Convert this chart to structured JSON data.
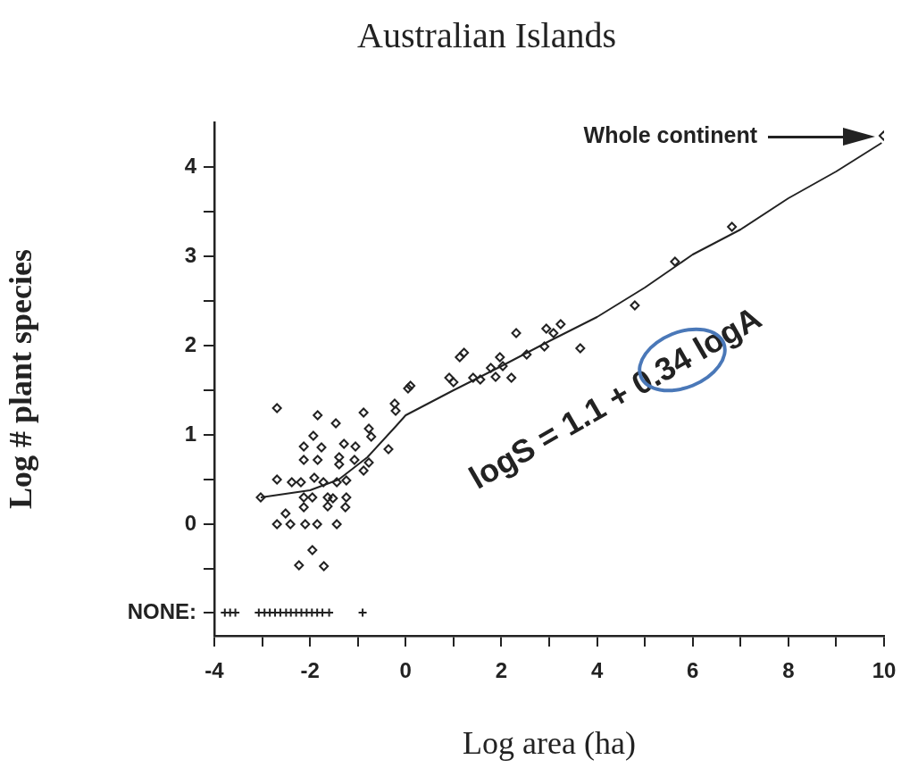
{
  "chart_data": {
    "type": "scatter",
    "title": "Australian Islands",
    "xlabel": "Log area (ha)",
    "ylabel": "Log # plant species",
    "xlim": [
      -4,
      10
    ],
    "ylim": [
      -1.25,
      4.5
    ],
    "xticks": [
      -4,
      {
        "value": -3,
        "label": null
      },
      -2,
      {
        "value": -1,
        "label": null
      },
      0,
      {
        "value": 1,
        "label": null
      },
      2,
      {
        "value": 3,
        "label": null
      },
      4,
      {
        "value": 5,
        "label": null
      },
      6,
      {
        "value": 7,
        "label": null
      },
      8,
      {
        "value": 9,
        "label": null
      },
      10
    ],
    "yticks": [
      {
        "value": -0.99,
        "label": "NONE:"
      },
      {
        "value": -0.5,
        "label": null
      },
      0,
      {
        "value": 0.5,
        "label": null
      },
      1,
      {
        "value": 1.5,
        "label": null
      },
      2,
      {
        "value": 2.5,
        "label": null
      },
      3,
      {
        "value": 3.5,
        "label": null
      },
      4
    ],
    "series": [
      {
        "type": "scatter",
        "marker": "diamond",
        "color": "#222222",
        "x": [
          -2.69,
          -1.84,
          -1.46,
          -0.88,
          -1.93,
          -1.76,
          -1.29,
          -2.13,
          -1.05,
          -0.72,
          -0.36,
          -2.13,
          -1.84,
          -1.39,
          -1.39,
          -1.07,
          -0.77,
          -0.88,
          -2.69,
          -2.38,
          -2.19,
          -1.91,
          -1.72,
          -1.44,
          -1.24,
          -3.03,
          -2.13,
          -1.95,
          -1.63,
          -1.52,
          -1.24,
          -2.13,
          -1.63,
          -1.26,
          -2.51,
          -2.69,
          -2.41,
          -2.1,
          -1.85,
          -1.44,
          -1.95,
          -2.23,
          -1.71,
          -0.77,
          -0.23,
          -0.21,
          0.05,
          0.1,
          1.13,
          1.22,
          0.91,
          1.0,
          1.41,
          1.56,
          1.78,
          1.97,
          2.03,
          1.88,
          2.21,
          2.31,
          2.53,
          2.9,
          2.94,
          3.09,
          3.24,
          3.65,
          4.79,
          5.63,
          6.82,
          9.99
        ],
        "values": [
          1.3,
          1.22,
          1.13,
          1.25,
          0.99,
          0.86,
          0.9,
          0.87,
          0.87,
          0.98,
          0.84,
          0.72,
          0.72,
          0.75,
          0.67,
          0.72,
          0.69,
          0.6,
          0.5,
          0.47,
          0.47,
          0.52,
          0.47,
          0.47,
          0.49,
          0.3,
          0.3,
          0.3,
          0.3,
          0.29,
          0.3,
          0.19,
          0.2,
          0.19,
          0.12,
          0.0,
          0.0,
          0.0,
          0.0,
          0.0,
          -0.29,
          -0.46,
          -0.47,
          1.07,
          1.35,
          1.27,
          1.52,
          1.55,
          1.87,
          1.92,
          1.64,
          1.59,
          1.64,
          1.62,
          1.75,
          1.87,
          1.77,
          1.65,
          1.64,
          2.14,
          1.9,
          1.99,
          2.19,
          2.14,
          2.24,
          1.97,
          2.45,
          2.94,
          3.33,
          4.35
        ]
      },
      {
        "type": "scatter",
        "marker": "cross",
        "color": "#222222",
        "x": [
          -3.78,
          -3.67,
          -3.56,
          -3.07,
          -2.95,
          -2.84,
          -2.73,
          -2.62,
          -2.5,
          -2.4,
          -2.29,
          -2.18,
          -2.07,
          -1.96,
          -1.85,
          -1.74,
          -1.6,
          -0.9
        ],
        "values": [
          -0.99,
          -0.99,
          -0.99,
          -0.99,
          -0.99,
          -0.99,
          -0.99,
          -0.99,
          -0.99,
          -0.99,
          -0.99,
          -0.99,
          -0.99,
          -0.99,
          -0.99,
          -0.99,
          -0.99,
          -0.99
        ]
      },
      {
        "type": "line",
        "marker": "none",
        "color": "#222222",
        "x": [
          -3.03,
          -2,
          -1.4,
          -0.8,
          -0.2,
          0,
          1,
          2,
          3,
          4,
          5,
          6,
          7,
          8,
          9,
          9.95
        ],
        "values": [
          0.3,
          0.38,
          0.5,
          0.75,
          1.1,
          1.22,
          1.5,
          1.77,
          2.05,
          2.32,
          2.65,
          3.02,
          3.3,
          3.65,
          3.95,
          4.27
        ]
      }
    ],
    "annotations": [
      "Whole continent",
      "logS = 1.1 + 0.34 logA"
    ]
  }
}
